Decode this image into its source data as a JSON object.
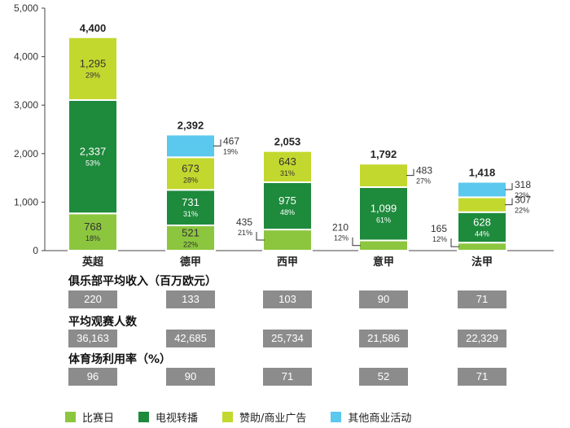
{
  "chart_data": {
    "type": "bar",
    "stacked": true,
    "categories": [
      "英超",
      "德甲",
      "西甲",
      "意甲",
      "法甲"
    ],
    "totals": [
      "4,400",
      "2,392",
      "2,053",
      "1,792",
      "1,418"
    ],
    "ylim": [
      0,
      5000
    ],
    "yticks": [
      "0",
      "1,000",
      "2,000",
      "3,000",
      "4,000",
      "5,000"
    ],
    "series": [
      {
        "name": "比赛日",
        "color": "#8cc63f",
        "values": [
          768,
          521,
          435,
          210,
          165
        ],
        "value_labels": [
          "768",
          "521",
          "435",
          "210",
          "165"
        ],
        "pct_labels": [
          "18%",
          "22%",
          "21%",
          "12%",
          "12%"
        ]
      },
      {
        "name": "电视转播",
        "color": "#1e8a3c",
        "values": [
          2337,
          731,
          975,
          1099,
          628
        ],
        "value_labels": [
          "2,337",
          "731",
          "975",
          "1,099",
          "628"
        ],
        "pct_labels": [
          "53%",
          "31%",
          "48%",
          "61%",
          "44%"
        ]
      },
      {
        "name": "赞助/商业广告",
        "color": "#c3d82e",
        "values": [
          1295,
          673,
          643,
          483,
          307
        ],
        "value_labels": [
          "1,295",
          "673",
          "643",
          "483",
          "307"
        ],
        "pct_labels": [
          "29%",
          "28%",
          "31%",
          "27%",
          "22%"
        ]
      },
      {
        "name": "其他商业活动",
        "color": "#5bc8ee",
        "values": [
          0,
          467,
          0,
          0,
          318
        ],
        "value_labels": [
          "",
          "467",
          "",
          "",
          "318"
        ],
        "pct_labels": [
          "",
          "19%",
          "",
          "",
          "22%"
        ]
      }
    ]
  },
  "stats": [
    {
      "title": "俱乐部平均收入（百万欧元）",
      "values": [
        "220",
        "133",
        "103",
        "90",
        "71"
      ]
    },
    {
      "title": "平均观赛人数",
      "values": [
        "36,163",
        "42,685",
        "25,734",
        "21,586",
        "22,329"
      ]
    },
    {
      "title": "体育场利用率（%）",
      "values": [
        "96",
        "90",
        "71",
        "52",
        "71"
      ]
    }
  ]
}
